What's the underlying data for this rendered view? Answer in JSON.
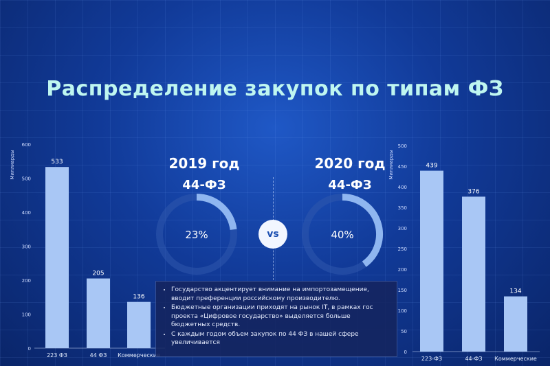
{
  "title": "Распределение закупок по типам  ФЗ",
  "vs_label": "vs",
  "donuts": [
    {
      "year": "2019 год",
      "law": "44-ФЗ",
      "percent": 23,
      "percent_label": "23%"
    },
    {
      "year": "2020 год",
      "law": "44-ФЗ",
      "percent": 40,
      "percent_label": "40%"
    }
  ],
  "notes": [
    "Государство акцентирует внимание на импортозамещение, вводит преференции российскому  производителю.",
    "Бюджетные организации приходят на рынок IT, в рамках   гос проекта «Цифровое  государство» выделяется больше бюджетных средств.",
    "С каждым годом объем закупок по 44 ФЗ в нашей сфере увеличивается"
  ],
  "colors": {
    "bar": "#a9c7f5",
    "donut_fill": "#8fb6f0",
    "donut_track": "#2f58ad",
    "title": "#bff6f0"
  },
  "chart_data": [
    {
      "type": "bar",
      "ylabel": "Миллиарды",
      "ylim": [
        0,
        600
      ],
      "yticks": [
        0,
        100,
        200,
        300,
        400,
        500,
        600
      ],
      "categories": [
        "223 ФЗ",
        "44 ФЗ",
        "Коммерческие"
      ],
      "values": [
        533,
        205,
        136
      ],
      "data_labels": [
        "533",
        "205",
        "136"
      ]
    },
    {
      "type": "bar",
      "ylabel": "Миллиарды",
      "ylim": [
        0,
        500
      ],
      "yticks": [
        0,
        50,
        100,
        150,
        200,
        250,
        300,
        350,
        400,
        450,
        500
      ],
      "categories": [
        "223-ФЗ",
        "44-ФЗ",
        "Коммерческие"
      ],
      "values": [
        439,
        376,
        134
      ],
      "data_labels": [
        "439",
        "376",
        "134"
      ]
    }
  ]
}
